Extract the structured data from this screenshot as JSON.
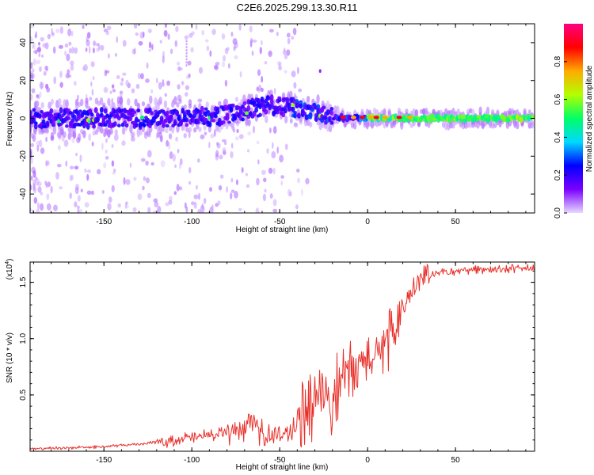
{
  "title": "C2E6.2025.299.13.30.R11",
  "chart_data": [
    {
      "type": "heatmap",
      "name": "spectrogram",
      "xlabel": "Height of straight line (km)",
      "ylabel": "Frequency (Hz)",
      "xlim": [
        -192,
        95
      ],
      "ylim": [
        -50,
        50
      ],
      "xticks": [
        -150,
        -100,
        -50,
        0,
        50
      ],
      "yticks": [
        -40,
        -20,
        0,
        20,
        40
      ],
      "colorbar": {
        "label": "Normalized spectral amplitude",
        "range": [
          0,
          1
        ],
        "ticks": [
          "0.0",
          "0.2",
          "0.4",
          "0.6",
          "0.8"
        ],
        "tick_values": [
          0.0,
          0.2,
          0.4,
          0.6,
          0.8
        ],
        "colors": [
          "#e6d9ff",
          "#7b00ff",
          "#0000ff",
          "#00d9ff",
          "#00ff66",
          "#b3ff00",
          "#ffaa00",
          "#ff0000",
          "#ff0080"
        ]
      },
      "ridge": {
        "x": [
          -192,
          -150,
          -100,
          -80,
          -65,
          -55,
          -45,
          -40,
          -35,
          -30,
          -25,
          -20,
          -10,
          0,
          10,
          30,
          50,
          70,
          95
        ],
        "y": [
          0,
          0,
          0,
          2,
          5,
          7,
          6,
          5,
          3,
          4,
          2,
          1,
          0,
          0,
          0,
          0,
          0,
          0,
          0
        ]
      }
    },
    {
      "type": "line",
      "name": "snr",
      "xlabel": "Height of straight line (km)",
      "ylabel": "SNR (10 * v/v)",
      "multiplier": "(x10",
      "multiplier_exp": "4",
      "multiplier_close": ")",
      "xlim": [
        -192,
        95
      ],
      "ylim": [
        0,
        1.68
      ],
      "xticks": [
        -150,
        -100,
        -50,
        0,
        50
      ],
      "yticks": [
        0.5,
        1.0,
        1.5
      ],
      "ytick_labels": [
        "0.5",
        "1.0",
        "1.5"
      ],
      "color": "#e8302a",
      "trend": {
        "x": [
          -192,
          -150,
          -120,
          -100,
          -90,
          -80,
          -70,
          -65,
          -60,
          -50,
          -40,
          -35,
          -30,
          -25,
          -20,
          -15,
          -10,
          -5,
          0,
          5,
          10,
          15,
          20,
          25,
          30,
          40,
          50,
          60,
          70,
          95
        ],
        "y": [
          0.02,
          0.04,
          0.08,
          0.12,
          0.14,
          0.16,
          0.22,
          0.26,
          0.15,
          0.14,
          0.22,
          0.32,
          0.45,
          0.55,
          0.45,
          0.62,
          0.7,
          0.75,
          0.8,
          0.85,
          0.92,
          1.05,
          1.25,
          1.4,
          1.52,
          1.58,
          1.6,
          1.61,
          1.62,
          1.62
        ]
      }
    }
  ]
}
